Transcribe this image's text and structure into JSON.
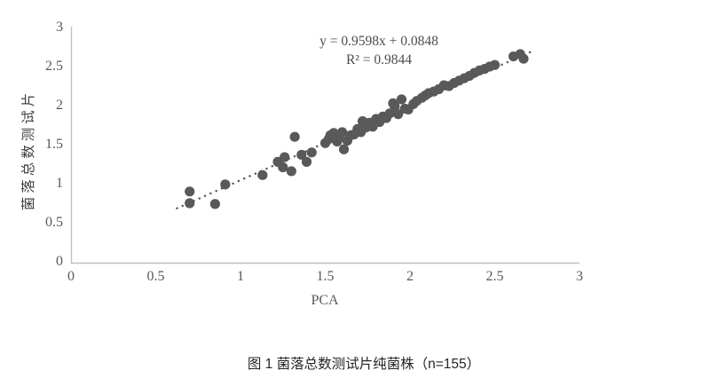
{
  "caption": "图 1 菌落总数测试片纯菌株（n=155）",
  "chart_data": {
    "type": "scatter",
    "title": "",
    "xlabel": "PCA",
    "ylabel": "菌落总数测试片",
    "xlim": [
      0,
      3
    ],
    "ylim": [
      0,
      3
    ],
    "x_ticks": [
      "0",
      "0.5",
      "1",
      "1.5",
      "2",
      "2.5",
      "3"
    ],
    "y_ticks": [
      "0",
      "0.5",
      "1",
      "1.5",
      "2",
      "2.5",
      "3"
    ],
    "grid": false,
    "legend": "none",
    "annotation": {
      "line1": "y = 0.9598x + 0.0848",
      "line2": "R² = 0.9844"
    },
    "trendline": {
      "slope": 0.9598,
      "intercept": 0.0848,
      "x_start": 0.62,
      "x_end": 2.72,
      "style": "dotted"
    },
    "point_color": "#595959",
    "axis_color": "#c0c0c0",
    "text_color": "#595959",
    "points": [
      [
        0.7,
        0.9
      ],
      [
        0.7,
        0.75
      ],
      [
        0.85,
        0.74
      ],
      [
        0.91,
        0.99
      ],
      [
        1.13,
        1.11
      ],
      [
        1.22,
        1.28
      ],
      [
        1.26,
        1.34
      ],
      [
        1.25,
        1.21
      ],
      [
        1.3,
        1.16
      ],
      [
        1.32,
        1.6
      ],
      [
        1.36,
        1.37
      ],
      [
        1.39,
        1.28
      ],
      [
        1.42,
        1.4
      ],
      [
        1.5,
        1.52
      ],
      [
        1.52,
        1.57
      ],
      [
        1.53,
        1.62
      ],
      [
        1.55,
        1.65
      ],
      [
        1.57,
        1.54
      ],
      [
        1.58,
        1.58
      ],
      [
        1.6,
        1.66
      ],
      [
        1.61,
        1.44
      ],
      [
        1.63,
        1.55
      ],
      [
        1.65,
        1.62
      ],
      [
        1.67,
        1.63
      ],
      [
        1.69,
        1.7
      ],
      [
        1.71,
        1.66
      ],
      [
        1.72,
        1.8
      ],
      [
        1.74,
        1.72
      ],
      [
        1.76,
        1.78
      ],
      [
        1.78,
        1.73
      ],
      [
        1.8,
        1.83
      ],
      [
        1.82,
        1.79
      ],
      [
        1.84,
        1.86
      ],
      [
        1.86,
        1.84
      ],
      [
        1.88,
        1.9
      ],
      [
        1.9,
        2.03
      ],
      [
        1.91,
        1.99
      ],
      [
        1.93,
        1.89
      ],
      [
        1.95,
        2.08
      ],
      [
        1.97,
        1.96
      ],
      [
        1.99,
        1.95
      ],
      [
        2.02,
        2.02
      ],
      [
        2.04,
        2.06
      ],
      [
        2.07,
        2.1
      ],
      [
        2.09,
        2.13
      ],
      [
        2.11,
        2.16
      ],
      [
        2.14,
        2.18
      ],
      [
        2.17,
        2.21
      ],
      [
        2.2,
        2.26
      ],
      [
        2.23,
        2.25
      ],
      [
        2.26,
        2.29
      ],
      [
        2.29,
        2.32
      ],
      [
        2.32,
        2.35
      ],
      [
        2.35,
        2.38
      ],
      [
        2.38,
        2.42
      ],
      [
        2.41,
        2.45
      ],
      [
        2.44,
        2.47
      ],
      [
        2.47,
        2.5
      ],
      [
        2.5,
        2.52
      ],
      [
        2.61,
        2.63
      ],
      [
        2.65,
        2.66
      ],
      [
        2.67,
        2.6
      ]
    ]
  }
}
